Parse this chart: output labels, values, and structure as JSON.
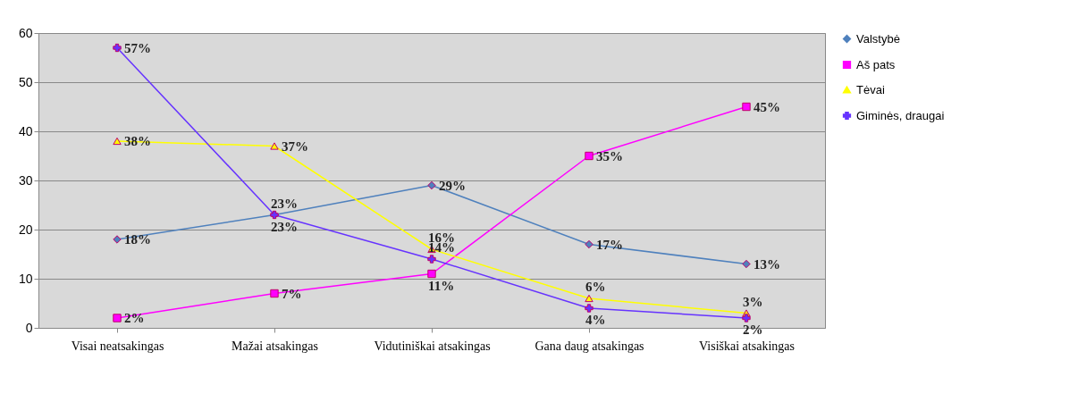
{
  "chart_data": {
    "type": "line",
    "categories": [
      "Visai neatsakingas",
      "Mažai atsakingas",
      "Vidutiniškai atsakingas",
      "Gana daug atsakingas",
      "Visiškai atsakingas"
    ],
    "ylim": [
      0,
      60
    ],
    "yticks": [
      0,
      10,
      20,
      30,
      40,
      50,
      60
    ],
    "grid": "y",
    "legend": "right",
    "series": [
      {
        "name": "Valstybė",
        "color": "#4f81bd",
        "marker": "diamond",
        "values": [
          18,
          23,
          29,
          17,
          13
        ],
        "value_labels": [
          "18%",
          "23%",
          "29%",
          "17%",
          "13%"
        ]
      },
      {
        "name": "Aš pats",
        "color": "#ff00ff",
        "marker": "square",
        "values": [
          2,
          7,
          11,
          35,
          45
        ],
        "value_labels": [
          "2%",
          "7%",
          "11%",
          "35%",
          "45%"
        ]
      },
      {
        "name": "Tėvai",
        "color": "#ffff00",
        "marker": "triangle",
        "values": [
          38,
          37,
          16,
          6,
          3
        ],
        "value_labels": [
          "38%",
          "37%",
          "16%",
          "6%",
          "3%"
        ]
      },
      {
        "name": "Giminės, draugai",
        "color": "#6633ff",
        "marker": "cross",
        "values": [
          57,
          23,
          14,
          4,
          2
        ],
        "value_labels": [
          "57%",
          "23%",
          "14%",
          "4%",
          "2%"
        ]
      }
    ]
  }
}
